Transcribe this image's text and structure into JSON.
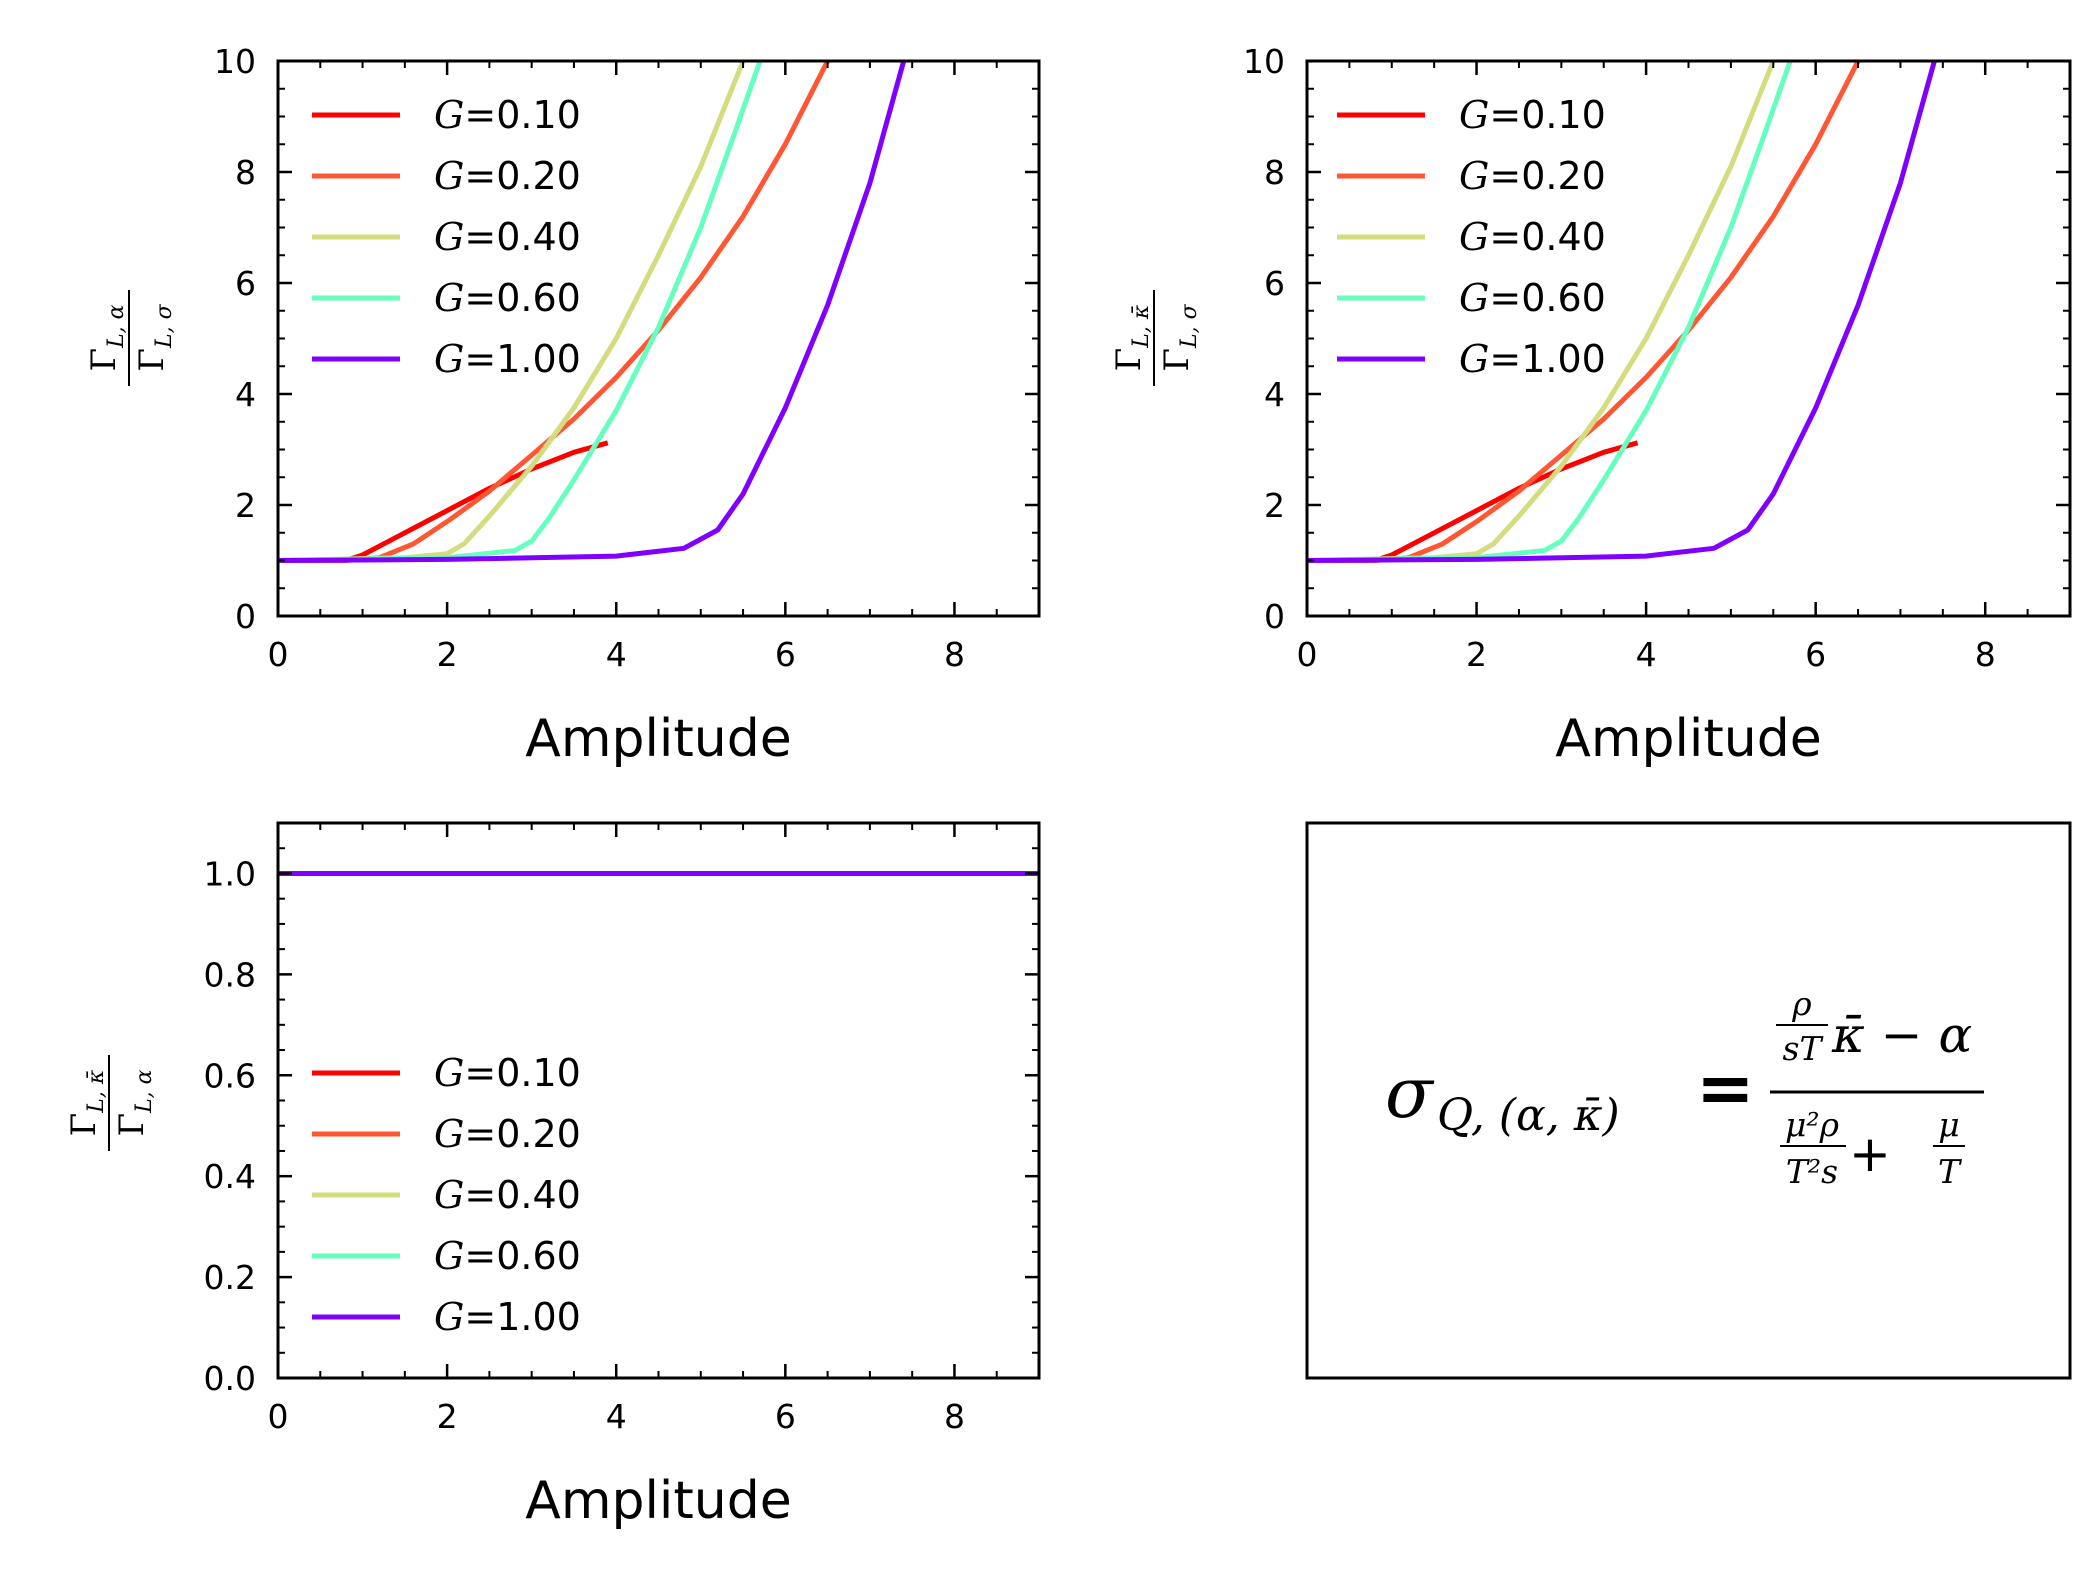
{
  "colors": {
    "G=0.10": "#ff0000",
    "G=0.20": "#ff5733",
    "G=0.40": "#d4dc7f",
    "G=0.60": "#66ffbf",
    "G=1.00": "#8000ff"
  },
  "chart_data": [
    {
      "type": "line",
      "panel": "top-left",
      "xlabel": "Amplitude",
      "ylabel": "Γ_{L,α} / Γ_{L,σ}",
      "ylabel_parts": {
        "num_main": "Γ",
        "num_sub": "L, α",
        "den_main": "Γ",
        "den_sub": "L, σ"
      },
      "xlim": [
        0,
        9
      ],
      "ylim": [
        0,
        10
      ],
      "xticks": [
        0,
        2,
        4,
        6,
        8
      ],
      "yticks": [
        0,
        2,
        4,
        6,
        8,
        10
      ],
      "xtick_labels": [
        "0",
        "2",
        "4",
        "6",
        "8"
      ],
      "ytick_labels": [
        "0",
        "2",
        "4",
        "6",
        "8",
        "10"
      ],
      "legend": "top-left",
      "series": [
        {
          "name": "G=0.10",
          "label_italic": "G",
          "label_rest": "=0.10",
          "x": [
            0,
            0.5,
            0.8,
            1.0,
            1.5,
            2.0,
            2.5,
            3.0,
            3.5,
            3.9
          ],
          "y": [
            1.0,
            1.0,
            1.0,
            1.1,
            1.5,
            1.9,
            2.3,
            2.65,
            2.95,
            3.12
          ]
        },
        {
          "name": "G=0.20",
          "label_italic": "G",
          "label_rest": "=0.20",
          "x": [
            0,
            0.8,
            1.2,
            1.6,
            2.0,
            2.5,
            3.0,
            3.5,
            4.0,
            4.5,
            5.0,
            5.5,
            6.0,
            6.5
          ],
          "y": [
            1.0,
            1.0,
            1.05,
            1.3,
            1.7,
            2.25,
            2.9,
            3.55,
            4.3,
            5.15,
            6.1,
            7.2,
            8.5,
            10.0
          ]
        },
        {
          "name": "G=0.40",
          "label_italic": "G",
          "label_rest": "=0.40",
          "x": [
            0,
            1.5,
            2.0,
            2.2,
            2.5,
            3.0,
            3.5,
            4.0,
            4.5,
            5.0,
            5.5
          ],
          "y": [
            1.0,
            1.05,
            1.12,
            1.3,
            1.8,
            2.7,
            3.75,
            5.0,
            6.5,
            8.1,
            10.0
          ]
        },
        {
          "name": "G=0.60",
          "label_italic": "G",
          "label_rest": "=0.60",
          "x": [
            0,
            2.0,
            2.8,
            3.0,
            3.2,
            3.5,
            4.0,
            4.5,
            5.0,
            5.4,
            5.7
          ],
          "y": [
            1.0,
            1.05,
            1.18,
            1.35,
            1.75,
            2.45,
            3.7,
            5.2,
            7.0,
            8.7,
            10.0
          ]
        },
        {
          "name": "G=1.00",
          "label_italic": "G",
          "label_rest": "=1.00",
          "x": [
            0,
            2.0,
            4.0,
            4.8,
            5.2,
            5.5,
            6.0,
            6.5,
            7.0,
            7.4
          ],
          "y": [
            1.0,
            1.02,
            1.08,
            1.22,
            1.55,
            2.2,
            3.75,
            5.6,
            7.8,
            10.0
          ]
        }
      ]
    },
    {
      "type": "line",
      "panel": "top-right",
      "xlabel": "Amplitude",
      "ylabel": "Γ_{L,κ̄} / Γ_{L,σ}",
      "ylabel_parts": {
        "num_main": "Γ",
        "num_sub": "L, κ̄",
        "den_main": "Γ",
        "den_sub": "L, σ"
      },
      "xlim": [
        0,
        9
      ],
      "ylim": [
        0,
        10
      ],
      "xticks": [
        0,
        2,
        4,
        6,
        8
      ],
      "yticks": [
        0,
        2,
        4,
        6,
        8,
        10
      ],
      "xtick_labels": [
        "0",
        "2",
        "4",
        "6",
        "8"
      ],
      "ytick_labels": [
        "0",
        "2",
        "4",
        "6",
        "8",
        "10"
      ],
      "legend": "top-left",
      "series": [
        {
          "name": "G=0.10",
          "label_italic": "G",
          "label_rest": "=0.10",
          "x": [
            0,
            0.5,
            0.8,
            1.0,
            1.5,
            2.0,
            2.5,
            3.0,
            3.5,
            3.9
          ],
          "y": [
            1.0,
            1.0,
            1.0,
            1.1,
            1.5,
            1.9,
            2.3,
            2.65,
            2.95,
            3.12
          ]
        },
        {
          "name": "G=0.20",
          "label_italic": "G",
          "label_rest": "=0.20",
          "x": [
            0,
            0.8,
            1.2,
            1.6,
            2.0,
            2.5,
            3.0,
            3.5,
            4.0,
            4.5,
            5.0,
            5.5,
            6.0,
            6.5
          ],
          "y": [
            1.0,
            1.0,
            1.05,
            1.3,
            1.7,
            2.25,
            2.9,
            3.55,
            4.3,
            5.15,
            6.1,
            7.2,
            8.5,
            10.0
          ]
        },
        {
          "name": "G=0.40",
          "label_italic": "G",
          "label_rest": "=0.40",
          "x": [
            0,
            1.5,
            2.0,
            2.2,
            2.5,
            3.0,
            3.5,
            4.0,
            4.5,
            5.0,
            5.5
          ],
          "y": [
            1.0,
            1.05,
            1.12,
            1.3,
            1.8,
            2.7,
            3.75,
            5.0,
            6.5,
            8.1,
            10.0
          ]
        },
        {
          "name": "G=0.60",
          "label_italic": "G",
          "label_rest": "=0.60",
          "x": [
            0,
            2.0,
            2.8,
            3.0,
            3.2,
            3.5,
            4.0,
            4.5,
            5.0,
            5.4,
            5.7
          ],
          "y": [
            1.0,
            1.05,
            1.18,
            1.35,
            1.75,
            2.45,
            3.7,
            5.2,
            7.0,
            8.7,
            10.0
          ]
        },
        {
          "name": "G=1.00",
          "label_italic": "G",
          "label_rest": "=1.00",
          "x": [
            0,
            2.0,
            4.0,
            4.8,
            5.2,
            5.5,
            6.0,
            6.5,
            7.0,
            7.4
          ],
          "y": [
            1.0,
            1.02,
            1.08,
            1.22,
            1.55,
            2.2,
            3.75,
            5.6,
            7.8,
            10.0
          ]
        }
      ]
    },
    {
      "type": "line",
      "panel": "bottom-left",
      "xlabel": "Amplitude",
      "ylabel": "Γ_{L,κ̄} / Γ_{L,α}",
      "ylabel_parts": {
        "num_main": "Γ",
        "num_sub": "L, κ̄",
        "den_main": "Γ",
        "den_sub": "L, α"
      },
      "xlim": [
        0,
        9
      ],
      "ylim": [
        0,
        1.1
      ],
      "xticks": [
        0,
        2,
        4,
        6,
        8
      ],
      "yticks": [
        0.0,
        0.2,
        0.4,
        0.6,
        0.8,
        1.0
      ],
      "xtick_labels": [
        "0",
        "2",
        "4",
        "6",
        "8"
      ],
      "ytick_labels": [
        "0.0",
        "0.2",
        "0.4",
        "0.6",
        "0.8",
        "1.0"
      ],
      "legend": "lower-left",
      "series": [
        {
          "name": "G=0.10",
          "label_italic": "G",
          "label_rest": "=0.10",
          "x": [
            0,
            9
          ],
          "y": [
            1.0,
            1.0
          ]
        },
        {
          "name": "G=0.20",
          "label_italic": "G",
          "label_rest": "=0.20",
          "x": [
            0,
            9
          ],
          "y": [
            1.0,
            1.0
          ]
        },
        {
          "name": "G=0.40",
          "label_italic": "G",
          "label_rest": "=0.40",
          "x": [
            0,
            9
          ],
          "y": [
            1.0,
            1.0
          ]
        },
        {
          "name": "G=0.60",
          "label_italic": "G",
          "label_rest": "=0.60",
          "x": [
            0,
            9
          ],
          "y": [
            1.0,
            1.0
          ]
        },
        {
          "name": "G=1.00",
          "label_italic": "G",
          "label_rest": "=1.00",
          "x": [
            0,
            9
          ],
          "y": [
            1.0,
            1.0
          ]
        }
      ]
    }
  ],
  "formula": {
    "lhs_main": "σ",
    "lhs_sub": "Q, (α, κ̄)",
    "equals": "=",
    "num_frac_top": "ρ",
    "num_frac_bottom": "sT",
    "num_rest": "κ̄ − α",
    "den_frac1_top": "μ²ρ",
    "den_frac1_bottom": "T²s",
    "den_plus": "+",
    "den_frac2_top": "μ",
    "den_frac2_bottom": "T"
  }
}
